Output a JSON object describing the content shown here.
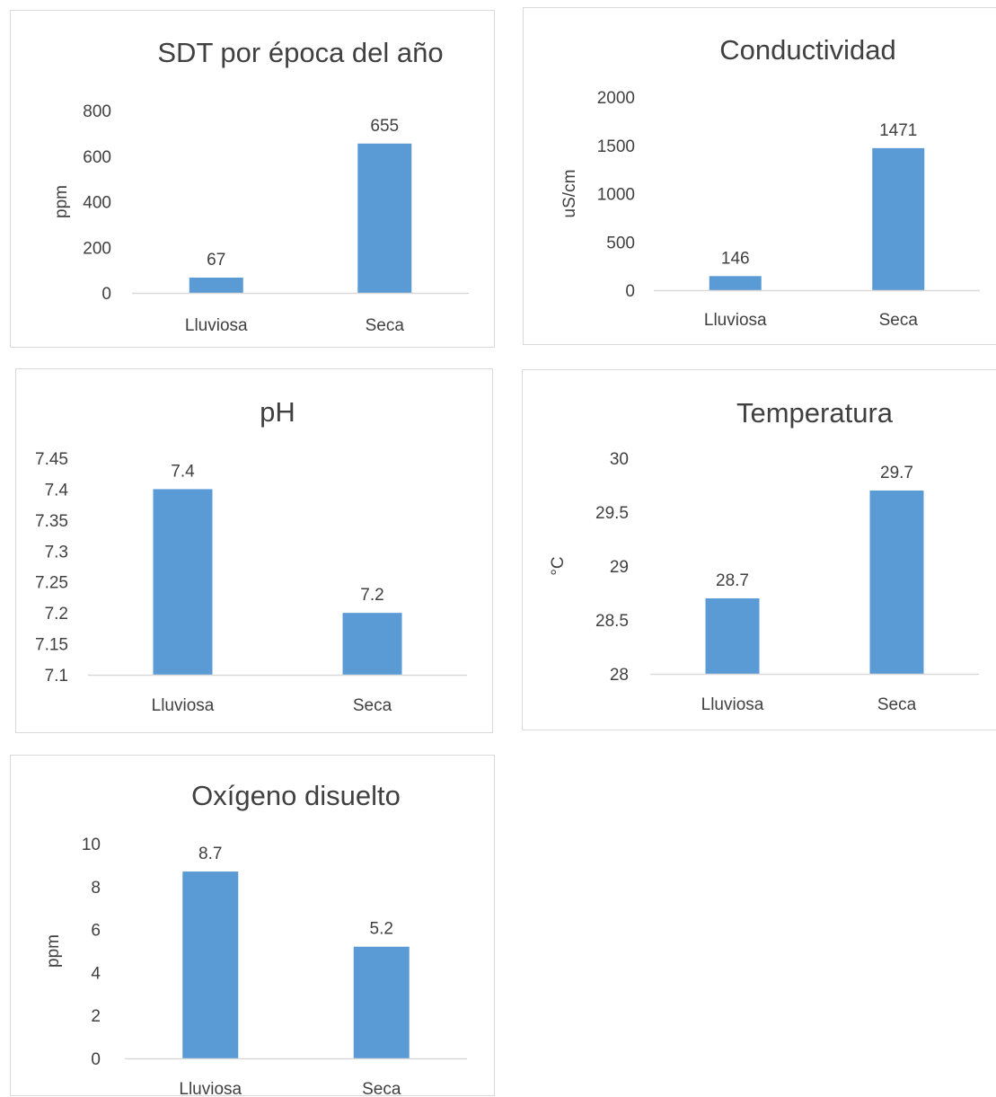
{
  "chart_data": [
    {
      "type": "bar",
      "title": "SDT por época del año",
      "ylabel": "ppm",
      "xlabel": "",
      "categories": [
        "Lluviosa",
        "Seca"
      ],
      "values": [
        67,
        655
      ],
      "data_labels": [
        "67",
        "655"
      ],
      "ylim": [
        0,
        800
      ],
      "yticks": [
        0,
        200,
        400,
        600,
        800
      ],
      "ytick_labels": [
        "0",
        "200",
        "400",
        "600",
        "800"
      ],
      "bar_color": "#5b9bd5",
      "gridlines": false
    },
    {
      "type": "bar",
      "title": "Conductividad",
      "ylabel": "uS/cm",
      "xlabel": "",
      "categories": [
        "Lluviosa",
        "Seca"
      ],
      "values": [
        146,
        1471
      ],
      "data_labels": [
        "146",
        "1471"
      ],
      "ylim": [
        0,
        2000
      ],
      "yticks": [
        0,
        500,
        1000,
        1500,
        2000
      ],
      "ytick_labels": [
        "0",
        "500",
        "1000",
        "1500",
        "2000"
      ],
      "bar_color": "#5b9bd5",
      "gridlines": false
    },
    {
      "type": "bar",
      "title": "pH",
      "ylabel": "",
      "xlabel": "",
      "categories": [
        "Lluviosa",
        "Seca"
      ],
      "values": [
        7.4,
        7.2
      ],
      "data_labels": [
        "7.4",
        "7.2"
      ],
      "ylim": [
        7.1,
        7.45
      ],
      "yticks": [
        7.1,
        7.15,
        7.2,
        7.25,
        7.3,
        7.35,
        7.4,
        7.45
      ],
      "ytick_labels": [
        "7.1",
        "7.15",
        "7.2",
        "7.25",
        "7.3",
        "7.35",
        "7.4",
        "7.45"
      ],
      "bar_color": "#5b9bd5",
      "gridlines": false
    },
    {
      "type": "bar",
      "title": "Temperatura",
      "ylabel": "°C",
      "xlabel": "",
      "categories": [
        "Lluviosa",
        "Seca"
      ],
      "values": [
        28.7,
        29.7
      ],
      "data_labels": [
        "28.7",
        "29.7"
      ],
      "ylim": [
        28,
        30
      ],
      "yticks": [
        28,
        28.5,
        29,
        29.5,
        30
      ],
      "ytick_labels": [
        "28",
        "28.5",
        "29",
        "29.5",
        "30"
      ],
      "bar_color": "#5b9bd5",
      "gridlines": false
    },
    {
      "type": "bar",
      "title": "Oxígeno disuelto",
      "ylabel": "ppm",
      "xlabel": "",
      "categories": [
        "Lluviosa",
        "Seca"
      ],
      "values": [
        8.7,
        5.2
      ],
      "data_labels": [
        "8.7",
        "5.2"
      ],
      "ylim": [
        0,
        10
      ],
      "yticks": [
        0,
        2,
        4,
        6,
        8,
        10
      ],
      "ytick_labels": [
        "0",
        "2",
        "4",
        "6",
        "8",
        "10"
      ],
      "bar_color": "#5b9bd5",
      "gridlines": false
    }
  ]
}
